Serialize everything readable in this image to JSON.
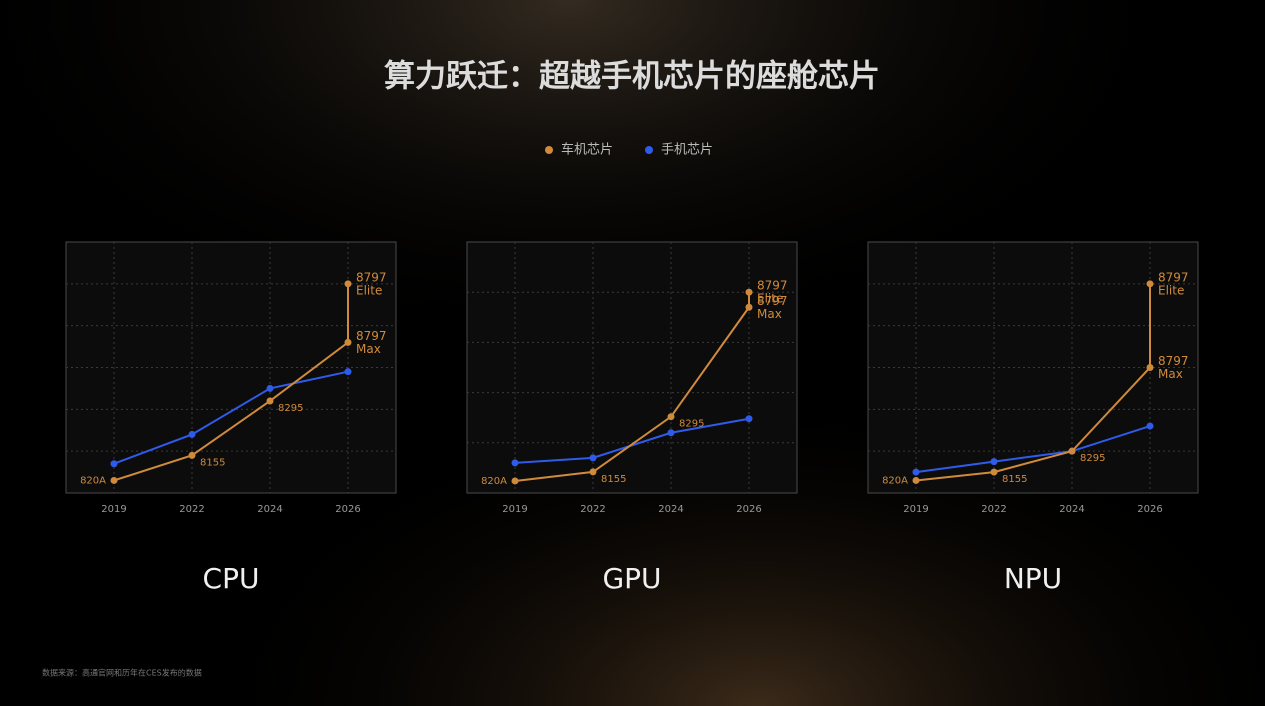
{
  "title": "算力跃迁：超越手机芯片的座舱芯片",
  "legend": [
    {
      "name": "车机芯片",
      "color": "#d08a3c"
    },
    {
      "name": "手机芯片",
      "color": "#2f5bea"
    }
  ],
  "chart_data": [
    {
      "type": "line",
      "title": "CPU",
      "categories": [
        "2019",
        "2022",
        "2024",
        "2026"
      ],
      "ylim": [
        0,
        6
      ],
      "yticks": [
        1,
        2,
        3,
        4,
        5
      ],
      "grid": true,
      "series": [
        {
          "color": "#d08a3c",
          "x": [
            "2019",
            "2022",
            "2024",
            "2026",
            "2026"
          ],
          "values": [
            0.3,
            0.9,
            2.2,
            3.6,
            5.0
          ],
          "point_labels": [
            [
              "820A"
            ],
            [
              "8155"
            ],
            [
              "8295"
            ],
            [
              "8797",
              "Max"
            ],
            [
              "8797",
              "Elite"
            ]
          ]
        },
        {
          "color": "#2f5bea",
          "values": [
            0.7,
            1.4,
            2.5,
            2.9
          ]
        }
      ]
    },
    {
      "type": "line",
      "title": "GPU",
      "categories": [
        "2019",
        "2022",
        "2024",
        "2026"
      ],
      "ylim": [
        0,
        5
      ],
      "yticks": [
        1,
        2,
        3,
        4
      ],
      "grid": true,
      "series": [
        {
          "color": "#d08a3c",
          "x": [
            "2019",
            "2022",
            "2024",
            "2026",
            "2026"
          ],
          "values": [
            0.24,
            0.42,
            1.52,
            3.7,
            4.0
          ],
          "point_labels": [
            [
              "820A"
            ],
            [
              "8155"
            ],
            [
              "8295"
            ],
            [
              "8797",
              "Max"
            ],
            [
              "8797",
              "Elite"
            ]
          ]
        },
        {
          "color": "#2f5bea",
          "values": [
            0.6,
            0.7,
            1.2,
            1.48
          ]
        }
      ]
    },
    {
      "type": "line",
      "title": "NPU",
      "categories": [
        "2019",
        "2022",
        "2024",
        "2026"
      ],
      "ylim": [
        0,
        6
      ],
      "yticks": [
        1,
        2,
        3,
        4,
        5
      ],
      "grid": true,
      "series": [
        {
          "color": "#d08a3c",
          "x": [
            "2019",
            "2022",
            "2024",
            "2026",
            "2026"
          ],
          "values": [
            0.3,
            0.5,
            1.0,
            3.0,
            5.0
          ],
          "point_labels": [
            [
              "820A"
            ],
            [
              "8155"
            ],
            [
              "8295"
            ],
            [
              "8797",
              "Max"
            ],
            [
              "8797",
              "Elite"
            ]
          ]
        },
        {
          "color": "#2f5bea",
          "values": [
            0.5,
            0.75,
            1.0,
            1.6
          ]
        }
      ]
    }
  ],
  "footnote": "数据来源：高通官网和历年在CES发布的数据"
}
